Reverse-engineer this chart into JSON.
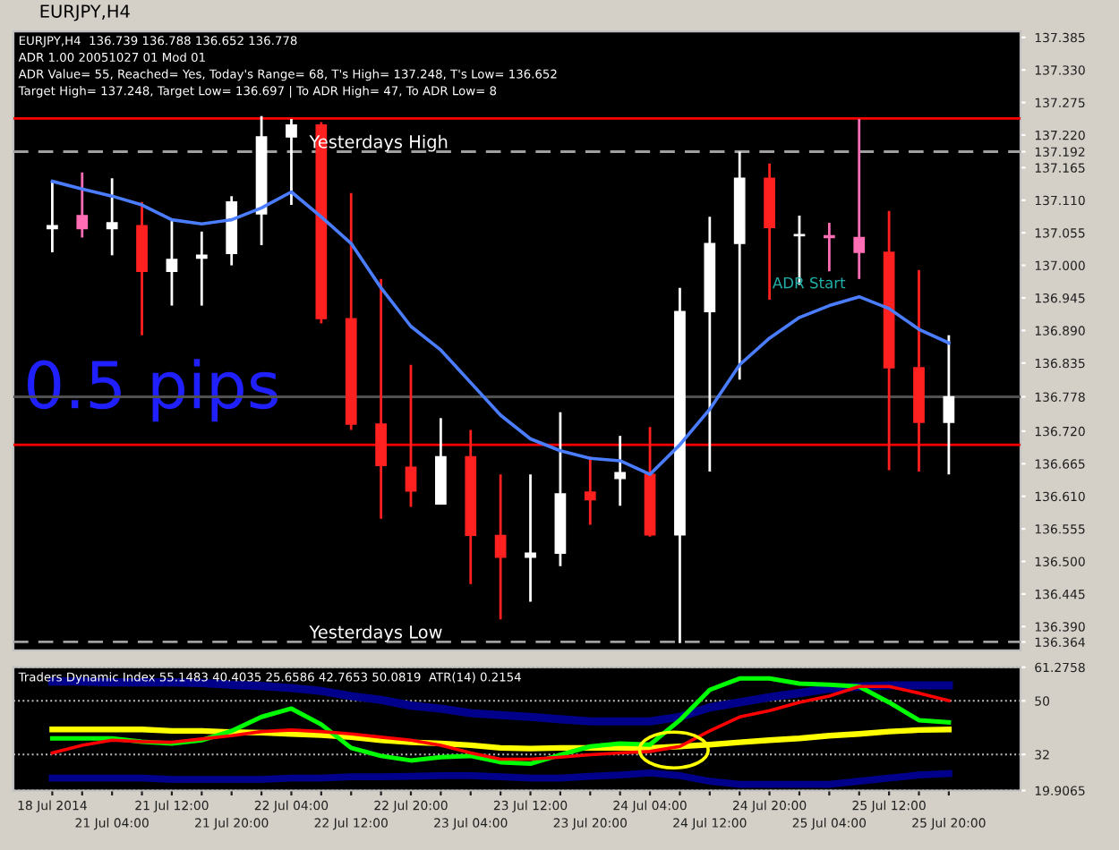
{
  "chart_data": [
    {
      "type": "candlestick",
      "title": "EURJPY,H4",
      "subtitle": "EURJPY,H4  136.739 136.788 136.652 136.778",
      "annotations": [
        "ADR 1.00 20051027 01 Mod 01",
        "ADR Value= 55, Reached= Yes, Today's Range= 68, T's High= 137.248, T's Low= 136.652",
        "Target High= 137.248, Target Low= 136.697 | To ADR High= 47, To ADR Low= 8",
        "0.5 pips",
        "ADR Start"
      ],
      "categories": [
        null,
        null,
        null,
        null,
        null,
        null,
        null,
        null,
        null,
        null,
        null,
        null,
        null,
        null,
        null,
        null,
        null,
        null,
        null,
        null,
        null,
        null,
        null,
        null,
        null,
        null,
        null,
        null,
        null,
        null,
        null
      ],
      "tick_labels": "y",
      "ohlc": [
        [
          137.062,
          137.142,
          137.022,
          137.067
        ],
        [
          137.084,
          137.157,
          137.047,
          137.062
        ],
        [
          137.062,
          137.147,
          137.017,
          137.072
        ],
        [
          137.067,
          137.107,
          136.882,
          136.99
        ],
        [
          136.99,
          137.077,
          136.932,
          137.01
        ],
        [
          137.012,
          137.057,
          136.932,
          137.017
        ],
        [
          137.02,
          137.117,
          137.0,
          137.107
        ],
        [
          137.087,
          137.252,
          137.034,
          137.217
        ],
        [
          137.217,
          137.247,
          137.102,
          137.237
        ],
        [
          137.237,
          137.242,
          136.902,
          136.91
        ],
        [
          136.91,
          137.122,
          136.722,
          136.732
        ],
        [
          136.732,
          136.977,
          136.572,
          136.662
        ],
        [
          136.659,
          136.832,
          136.592,
          136.619
        ],
        [
          136.597,
          136.742,
          136.597,
          136.677
        ],
        [
          136.677,
          136.722,
          136.462,
          136.544
        ],
        [
          136.544,
          136.647,
          136.402,
          136.507
        ],
        [
          136.507,
          136.647,
          136.432,
          136.514
        ],
        [
          136.514,
          136.752,
          136.492,
          136.614
        ],
        [
          136.617,
          136.677,
          136.562,
          136.604
        ],
        [
          136.64,
          136.712,
          136.594,
          136.65
        ],
        [
          136.647,
          136.727,
          136.542,
          136.545
        ],
        [
          136.545,
          136.962,
          136.362,
          136.922
        ],
        [
          136.922,
          137.082,
          136.652,
          137.037
        ],
        [
          137.037,
          137.192,
          136.807,
          137.147
        ],
        [
          137.147,
          137.172,
          136.942,
          137.064
        ],
        [
          137.05,
          137.084,
          136.967,
          137.05
        ],
        [
          137.05,
          137.072,
          136.99,
          137.047
        ],
        [
          137.047,
          137.247,
          136.977,
          137.022
        ],
        [
          137.022,
          137.092,
          136.654,
          136.827
        ],
        [
          136.827,
          136.992,
          136.652,
          136.735
        ],
        [
          136.735,
          136.882,
          136.647,
          136.778
        ]
      ],
      "colors": [
        "#ffffff",
        "#ff6eb4",
        "#ffffff",
        "#ff2020",
        "#ffffff",
        "#ffffff",
        "#ffffff",
        "#ffffff",
        "#ffffff",
        "#ff2020",
        "#ff2020",
        "#ff2020",
        "#ff2020",
        "#ffffff",
        "#ff2020",
        "#ff2020",
        "#ffffff",
        "#ffffff",
        "#ff2020",
        "#ffffff",
        "#ff2020",
        "#ffffff",
        "#ffffff",
        "#ffffff",
        "#ff2020",
        "#ffffff",
        "#ff6eb4",
        "#ff6eb4",
        "#ff2020",
        "#ff2020",
        "#ffffff"
      ],
      "series": [
        {
          "type": "line",
          "color": "#4a7dff",
          "values": [
            137.142,
            137.129,
            137.117,
            137.102,
            137.077,
            137.07,
            137.077,
            137.097,
            137.124,
            137.082,
            137.037,
            136.962,
            136.897,
            136.857,
            136.802,
            136.747,
            136.707,
            136.687,
            136.674,
            136.67,
            136.647,
            136.697,
            136.757,
            136.832,
            136.877,
            136.912,
            136.932,
            136.947,
            136.927,
            136.892,
            136.869
          ]
        }
      ],
      "ylim": [
        136.35,
        137.395
      ],
      "yticks": [
        {
          "value": 136.364,
          "label": "136.364"
        },
        {
          "value": 136.39,
          "label": "136.390"
        },
        {
          "value": 136.445,
          "label": "136.445"
        },
        {
          "value": 136.5,
          "label": "136.500"
        },
        {
          "value": 136.555,
          "label": "136.555"
        },
        {
          "value": 136.61,
          "label": "136.610"
        },
        {
          "value": 136.665,
          "label": "136.665"
        },
        {
          "value": 136.72,
          "label": "136.720"
        },
        {
          "value": 136.778,
          "label": "136.778"
        },
        {
          "value": 136.835,
          "label": "136.835"
        },
        {
          "value": 136.89,
          "label": "136.890"
        },
        {
          "value": 136.945,
          "label": "136.945"
        },
        {
          "value": 137.0,
          "label": "137.000"
        },
        {
          "value": 137.055,
          "label": "137.055"
        },
        {
          "value": 137.11,
          "label": "137.110"
        },
        {
          "value": 137.165,
          "label": "137.165"
        },
        {
          "value": 137.192,
          "label": "137.192"
        },
        {
          "value": 137.22,
          "label": "137.220"
        },
        {
          "value": 137.275,
          "label": "137.275"
        },
        {
          "value": 137.33,
          "label": "137.330"
        },
        {
          "value": 137.385,
          "label": "137.385"
        }
      ],
      "ref_lines": [
        {
          "axis": "y",
          "value": 137.192,
          "label": "Yesterdays High",
          "color": "#a0a0a0",
          "line_style": "dashed"
        },
        {
          "axis": "y",
          "value": 136.364,
          "label": "Yesterdays Low",
          "color": "#a0a0a0",
          "line_style": "dashed"
        },
        {
          "axis": "y",
          "value": 136.778,
          "color": "#505050",
          "line_style": "solid"
        },
        {
          "axis": "y",
          "value": 137.248,
          "color": "#ff0000",
          "line_style": "solid"
        },
        {
          "axis": "y",
          "value": 136.697,
          "color": "#ff0000",
          "line_style": "solid"
        }
      ],
      "grid": false,
      "legend": false
    },
    {
      "type": "line",
      "title": "Traders Dynamic Index 55.1483 40.4035 25.6586 42.7653 50.0819  ATR(14) 0.2154",
      "categories": [
        "18 Jul 2014",
        null,
        "21 Jul 04:00",
        null,
        "21 Jul 12:00",
        null,
        "21 Jul 20:00",
        null,
        "22 Jul 04:00",
        null,
        "22 Jul 12:00",
        null,
        "22 Jul 20:00",
        null,
        "23 Jul 04:00",
        null,
        "23 Jul 12:00",
        null,
        "23 Jul 20:00",
        null,
        "24 Jul 04:00",
        null,
        "24 Jul 12:00",
        null,
        "24 Jul 20:00",
        null,
        "25 Jul 04:00",
        null,
        "25 Jul 12:00",
        null,
        "25 Jul 20:00"
      ],
      "series": [
        {
          "color": "#00008b",
          "values": [
            56.5,
            56.5,
            56.2,
            56.2,
            56.2,
            56.0,
            55.4,
            55.0,
            54.3,
            53.3,
            51.6,
            50.3,
            48.4,
            47.4,
            45.9,
            45.2,
            44.6,
            43.8,
            43.1,
            43.1,
            43.1,
            44.6,
            47.8,
            49.5,
            51.2,
            52.6,
            54.1,
            54.8,
            55.2,
            55.2,
            55.2
          ]
        },
        {
          "color": "#00008b",
          "values": [
            24.1,
            24.1,
            24.1,
            24.1,
            23.6,
            23.6,
            23.6,
            23.6,
            24.1,
            24.1,
            24.5,
            24.5,
            24.7,
            24.9,
            24.9,
            24.5,
            24.1,
            24.1,
            24.7,
            25.1,
            25.8,
            24.9,
            23.0,
            22.0,
            22.0,
            22.0,
            22.0,
            23.0,
            24.1,
            25.1,
            25.6
          ]
        },
        {
          "color": "#ffff00",
          "values": [
            40.4,
            40.4,
            40.4,
            40.4,
            39.9,
            39.9,
            39.5,
            39.3,
            38.9,
            38.5,
            37.8,
            36.8,
            36.1,
            35.7,
            35.1,
            34.2,
            34.0,
            34.2,
            34.2,
            34.2,
            34.2,
            34.7,
            35.3,
            36.1,
            36.8,
            37.4,
            38.3,
            38.9,
            39.7,
            40.2,
            40.4
          ]
        },
        {
          "color": "#00ff00",
          "values": [
            37.4,
            37.4,
            37.4,
            36.3,
            35.7,
            36.8,
            39.9,
            44.6,
            47.4,
            42.1,
            34.2,
            31.5,
            30.0,
            31.1,
            31.5,
            29.4,
            28.9,
            31.9,
            34.7,
            35.7,
            35.3,
            43.5,
            53.7,
            57.5,
            57.5,
            55.8,
            55.4,
            54.8,
            49.5,
            43.5,
            42.8
          ]
        },
        {
          "color": "#ff0000",
          "values": [
            32.5,
            35.1,
            36.8,
            36.3,
            36.1,
            37.2,
            38.3,
            39.7,
            40.2,
            39.7,
            38.9,
            37.8,
            36.8,
            35.1,
            32.5,
            30.4,
            30.4,
            31.1,
            31.9,
            32.5,
            33.0,
            34.7,
            39.9,
            44.6,
            46.7,
            49.5,
            51.6,
            54.8,
            54.8,
            52.6,
            50.1
          ]
        }
      ],
      "ylim": [
        19.9065,
        61.2758
      ],
      "yticks": [
        19.9065,
        32,
        50,
        61.2758
      ],
      "grid": "y",
      "legend": false
    }
  ]
}
